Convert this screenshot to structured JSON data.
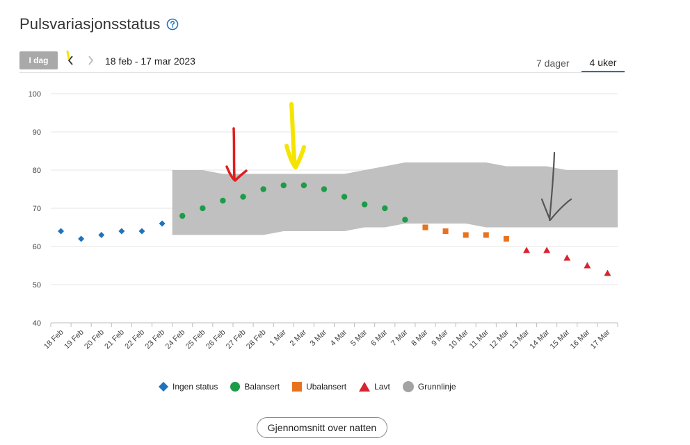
{
  "header": {
    "title": "Pulsvariasjonsstatus",
    "help_icon": "question-circle-icon"
  },
  "toolbar": {
    "today_label": "I dag",
    "prev_icon": "chevron-left-icon",
    "next_icon": "chevron-right-icon",
    "date_range": "18 feb - 17 mar 2023",
    "tabs": [
      {
        "label": "7 dager",
        "active": false
      },
      {
        "label": "4 uker",
        "active": true
      }
    ]
  },
  "chart_data": {
    "type": "scatter",
    "categories": [
      "18 Feb",
      "19 Feb",
      "20 Feb",
      "21 Feb",
      "22 Feb",
      "23 Feb",
      "24 Feb",
      "25 Feb",
      "26 Feb",
      "27 Feb",
      "28 Feb",
      "1 Mar",
      "2 Mar",
      "3 Mar",
      "4 Mar",
      "5 Mar",
      "6 Mar",
      "7 Mar",
      "8 Mar",
      "9 Mar",
      "10 Mar",
      "11 Mar",
      "12 Mar",
      "13 Mar",
      "14 Mar",
      "15 Mar",
      "16 Mar",
      "17 Mar"
    ],
    "ylim": [
      40,
      100
    ],
    "yticks": [
      40,
      50,
      60,
      70,
      80,
      90,
      100
    ],
    "grid": true,
    "legend_position": "bottom-center",
    "series": [
      {
        "name": "Ingen status",
        "marker": "diamond",
        "color": "#1e73be",
        "points": [
          [
            0,
            64
          ],
          [
            1,
            62
          ],
          [
            2,
            63
          ],
          [
            3,
            64
          ],
          [
            4,
            64
          ],
          [
            5,
            66
          ]
        ]
      },
      {
        "name": "Balansert",
        "marker": "circle",
        "color": "#1c9c47",
        "points": [
          [
            6,
            68
          ],
          [
            7,
            70
          ],
          [
            8,
            72
          ],
          [
            9,
            73
          ],
          [
            10,
            75
          ],
          [
            11,
            76
          ],
          [
            12,
            76
          ],
          [
            13,
            75
          ],
          [
            14,
            73
          ],
          [
            15,
            71
          ],
          [
            16,
            70
          ],
          [
            17,
            67
          ]
        ]
      },
      {
        "name": "Ubalansert",
        "marker": "square",
        "color": "#e8731e",
        "points": [
          [
            18,
            65
          ],
          [
            19,
            64
          ],
          [
            20,
            63
          ],
          [
            21,
            63
          ],
          [
            22,
            62
          ]
        ]
      },
      {
        "name": "Lavt",
        "marker": "triangle",
        "color": "#d9232f",
        "points": [
          [
            23,
            59
          ],
          [
            24,
            59
          ],
          [
            25,
            57
          ],
          [
            26,
            55
          ],
          [
            27,
            53
          ]
        ]
      }
    ],
    "baseline": {
      "name": "Grunnlinje",
      "color": "#c0c0c0",
      "upper": [
        [
          6,
          80
        ],
        [
          7,
          80
        ],
        [
          8,
          79
        ],
        [
          9,
          79
        ],
        [
          10,
          79
        ],
        [
          11,
          79
        ],
        [
          12,
          79
        ],
        [
          13,
          79
        ],
        [
          14,
          79
        ],
        [
          15,
          80
        ],
        [
          16,
          81
        ],
        [
          17,
          82
        ],
        [
          18,
          82
        ],
        [
          19,
          82
        ],
        [
          20,
          82
        ],
        [
          21,
          82
        ],
        [
          22,
          81
        ],
        [
          23,
          81
        ],
        [
          24,
          81
        ],
        [
          25,
          80
        ],
        [
          26,
          80
        ],
        [
          27,
          80
        ]
      ],
      "lower": [
        [
          6,
          63
        ],
        [
          7,
          63
        ],
        [
          8,
          63
        ],
        [
          9,
          63
        ],
        [
          10,
          63
        ],
        [
          11,
          64
        ],
        [
          12,
          64
        ],
        [
          13,
          64
        ],
        [
          14,
          64
        ],
        [
          15,
          65
        ],
        [
          16,
          65
        ],
        [
          17,
          66
        ],
        [
          18,
          66
        ],
        [
          19,
          66
        ],
        [
          20,
          66
        ],
        [
          21,
          65
        ],
        [
          22,
          65
        ],
        [
          23,
          65
        ],
        [
          24,
          65
        ],
        [
          25,
          65
        ],
        [
          26,
          65
        ],
        [
          27,
          65
        ]
      ]
    }
  },
  "legend": {
    "items": [
      {
        "label": "Ingen status",
        "marker": "diamond",
        "color": "#1e73be"
      },
      {
        "label": "Balansert",
        "marker": "circle",
        "color": "#1c9c47"
      },
      {
        "label": "Ubalansert",
        "marker": "square",
        "color": "#e8731e"
      },
      {
        "label": "Lavt",
        "marker": "triangle",
        "color": "#d9232f"
      },
      {
        "label": "Grunnlinje",
        "marker": "circle",
        "color": "#a3a3a3"
      }
    ]
  },
  "footer": {
    "average_button": "Gjennomsnitt over natten"
  },
  "annotations": {
    "colors": {
      "yellow": "#f5e400",
      "red": "#e01e1e",
      "gray": "#555555"
    }
  }
}
